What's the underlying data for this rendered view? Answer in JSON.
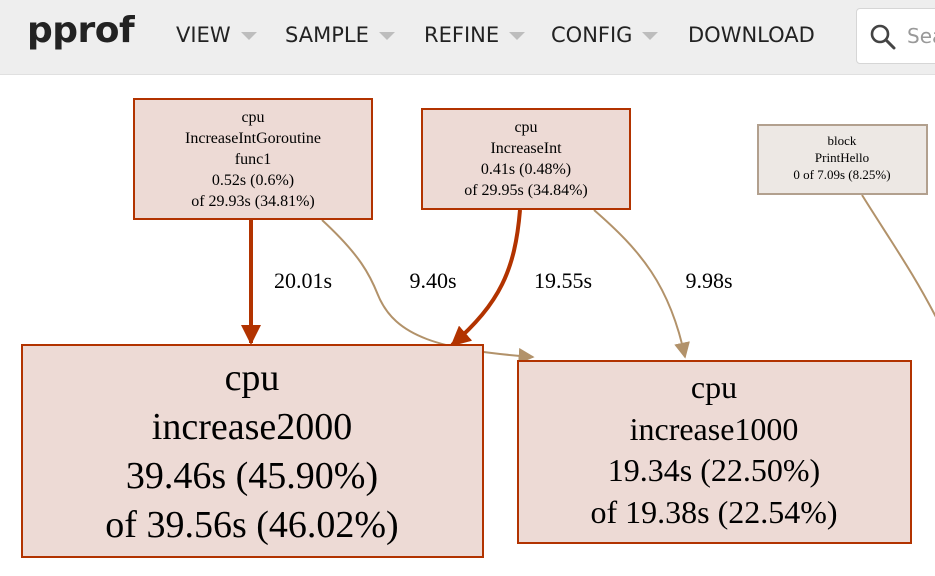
{
  "app": {
    "logo": "pprof"
  },
  "menu": [
    {
      "label": "VIEW",
      "has_caret": true
    },
    {
      "label": "SAMPLE",
      "has_caret": true
    },
    {
      "label": "REFINE",
      "has_caret": true
    },
    {
      "label": "CONFIG",
      "has_caret": true
    },
    {
      "label": "DOWNLOAD",
      "has_caret": false
    }
  ],
  "search": {
    "placeholder": "Search regexp",
    "icon": "search-icon"
  },
  "graph": {
    "colors": {
      "hot_border": "#b23300",
      "hot_fill": "#eddad5",
      "warm_edge": "#b2926a",
      "cold_border": "#b2a08e",
      "cold_fill": "#ede8e4"
    },
    "nodes": [
      {
        "id": "goroutine",
        "lines": [
          "cpu",
          "IncreaseIntGoroutine",
          "func1",
          "0.52s (0.6%)",
          "of 29.93s (34.81%)"
        ]
      },
      {
        "id": "increaseint",
        "lines": [
          "cpu",
          "IncreaseInt",
          "0.41s (0.48%)",
          "of 29.95s (34.84%)"
        ]
      },
      {
        "id": "printhello",
        "lines": [
          "block",
          "PrintHello",
          "0 of 7.09s (8.25%)"
        ]
      },
      {
        "id": "increase2000",
        "lines": [
          "cpu",
          "increase2000",
          "39.46s (45.90%)",
          "of 39.56s (46.02%)"
        ]
      },
      {
        "id": "increase1000",
        "lines": [
          "cpu",
          "increase1000",
          "19.34s (22.50%)",
          "of 19.38s (22.54%)"
        ]
      }
    ],
    "edges": [
      {
        "from": "goroutine",
        "to": "increase2000",
        "label": "20.01s"
      },
      {
        "from": "goroutine",
        "to": "increase1000",
        "label": "9.40s"
      },
      {
        "from": "increaseint",
        "to": "increase2000",
        "label": "19.55s"
      },
      {
        "from": "increaseint",
        "to": "increase1000",
        "label": "9.98s"
      },
      {
        "from": "printhello",
        "to": "offscreen",
        "label": ""
      }
    ]
  }
}
